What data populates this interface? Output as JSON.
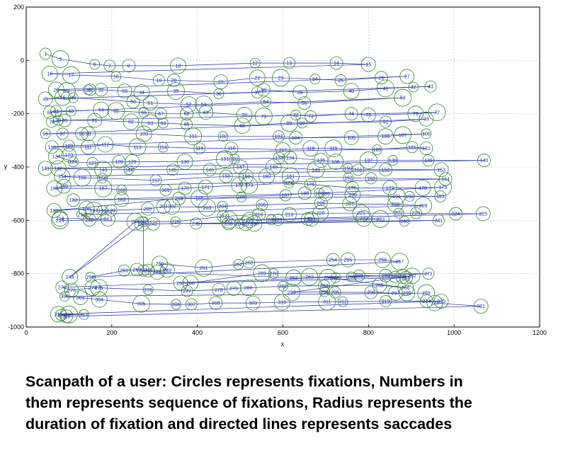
{
  "chart_data": {
    "type": "scatter",
    "xlabel": "x",
    "ylabel": "y",
    "xlim": [
      0,
      1200
    ],
    "ylim": [
      -1000,
      200
    ],
    "x_ticks": [
      0,
      200,
      400,
      600,
      800,
      1000,
      1200
    ],
    "y_ticks": [
      200,
      0,
      -200,
      -400,
      -600,
      -800,
      -1000
    ],
    "x_tick_labels": [
      "0",
      "200",
      "400",
      "600",
      "800",
      "1000",
      "1200"
    ],
    "y_tick_labels": [
      "200",
      "0",
      "-200",
      "-400",
      "-600",
      "-800",
      "-1000"
    ],
    "grid": "dotted",
    "fixations": [
      [
        1,
        45,
        25
      ],
      [
        5,
        80,
        5
      ],
      [
        6,
        160,
        -15
      ],
      [
        7,
        195,
        -20
      ],
      [
        8,
        240,
        -20
      ],
      [
        10,
        355,
        -20
      ],
      [
        12,
        535,
        -10
      ],
      [
        13,
        615,
        -10
      ],
      [
        14,
        725,
        -10
      ],
      [
        15,
        800,
        -15
      ],
      [
        16,
        55,
        -50
      ],
      [
        17,
        105,
        -55
      ],
      [
        18,
        210,
        -60
      ],
      [
        19,
        310,
        -75
      ],
      [
        20,
        345,
        -75
      ],
      [
        21,
        455,
        -80
      ],
      [
        22,
        540,
        -65
      ],
      [
        23,
        595,
        -65
      ],
      [
        24,
        675,
        -70
      ],
      [
        25,
        735,
        -75
      ],
      [
        26,
        830,
        -65
      ],
      [
        27,
        890,
        -60
      ],
      [
        28,
        70,
        -110
      ],
      [
        29,
        95,
        -115
      ],
      [
        30,
        145,
        -110
      ],
      [
        31,
        150,
        -110
      ],
      [
        32,
        175,
        -110
      ],
      [
        33,
        230,
        -115
      ],
      [
        34,
        270,
        -120
      ],
      [
        35,
        350,
        -115
      ],
      [
        36,
        450,
        -125
      ],
      [
        37,
        540,
        -120
      ],
      [
        38,
        555,
        -110
      ],
      [
        39,
        640,
        -120
      ],
      [
        40,
        760,
        -115
      ],
      [
        41,
        840,
        -105
      ],
      [
        42,
        905,
        -100
      ],
      [
        43,
        945,
        -98
      ],
      [
        45,
        45,
        -145
      ],
      [
        46,
        85,
        -140
      ],
      [
        48,
        110,
        -140
      ],
      [
        50,
        250,
        -155
      ],
      [
        51,
        290,
        -160
      ],
      [
        52,
        380,
        -165
      ],
      [
        53,
        415,
        -165
      ],
      [
        54,
        560,
        -155
      ],
      [
        56,
        650,
        -160
      ],
      [
        59,
        880,
        -140
      ],
      [
        60,
        105,
        -190
      ],
      [
        61,
        70,
        -190
      ],
      [
        62,
        55,
        -195
      ],
      [
        64,
        175,
        -185
      ],
      [
        65,
        210,
        -190
      ],
      [
        66,
        275,
        -195
      ],
      [
        67,
        315,
        -200
      ],
      [
        68,
        375,
        -200
      ],
      [
        69,
        420,
        -195
      ],
      [
        70,
        510,
        -205
      ],
      [
        71,
        555,
        -210
      ],
      [
        72,
        630,
        -205
      ],
      [
        73,
        665,
        -210
      ],
      [
        74,
        760,
        -200
      ],
      [
        75,
        800,
        -205
      ],
      [
        76,
        910,
        -200
      ],
      [
        77,
        960,
        -195
      ],
      [
        78,
        75,
        -225
      ],
      [
        79,
        60,
        -230
      ],
      [
        80,
        90,
        -225
      ],
      [
        81,
        160,
        -225
      ],
      [
        82,
        245,
        -230
      ],
      [
        83,
        290,
        -235
      ],
      [
        84,
        320,
        -235
      ],
      [
        85,
        375,
        -240
      ],
      [
        88,
        505,
        -245
      ],
      [
        89,
        615,
        -235
      ],
      [
        90,
        645,
        -235
      ],
      [
        91,
        840,
        -230
      ],
      [
        93,
        935,
        -220
      ],
      [
        96,
        45,
        -275
      ],
      [
        97,
        85,
        -275
      ],
      [
        98,
        130,
        -275
      ],
      [
        99,
        145,
        -275
      ],
      [
        100,
        275,
        -275
      ],
      [
        101,
        390,
        -285
      ],
      [
        102,
        460,
        -285
      ],
      [
        103,
        590,
        -285
      ],
      [
        104,
        630,
        -290
      ],
      [
        105,
        760,
        -290
      ],
      [
        106,
        840,
        -285
      ],
      [
        107,
        880,
        -280
      ],
      [
        108,
        935,
        -275
      ],
      [
        109,
        100,
        -320
      ],
      [
        110,
        60,
        -325
      ],
      [
        111,
        145,
        -325
      ],
      [
        112,
        185,
        -315
      ],
      [
        113,
        260,
        -325
      ],
      [
        114,
        320,
        -325
      ],
      [
        115,
        405,
        -330
      ],
      [
        116,
        480,
        -330
      ],
      [
        117,
        600,
        -335
      ],
      [
        118,
        665,
        -330
      ],
      [
        119,
        718,
        -330
      ],
      [
        120,
        820,
        -335
      ],
      [
        121,
        902,
        -325
      ],
      [
        122,
        935,
        -330
      ],
      [
        123,
        100,
        -355
      ],
      [
        124,
        70,
        -360
      ],
      [
        126,
        110,
        -380
      ],
      [
        127,
        155,
        -385
      ],
      [
        128,
        217,
        -380
      ],
      [
        129,
        248,
        -380
      ],
      [
        130,
        371,
        -380
      ],
      [
        131,
        464,
        -370
      ],
      [
        132,
        487,
        -370
      ],
      [
        133,
        591,
        -366
      ],
      [
        134,
        617,
        -365
      ],
      [
        135,
        689,
        -375
      ],
      [
        136,
        723,
        -380
      ],
      [
        137,
        800,
        -375
      ],
      [
        138,
        857,
        -375
      ],
      [
        139,
        940,
        -375
      ],
      [
        140,
        1070,
        -375
      ],
      [
        141,
        45,
        -405
      ],
      [
        142,
        75,
        -405
      ],
      [
        143,
        180,
        -410
      ],
      [
        144,
        240,
        -410
      ],
      [
        145,
        342,
        -410
      ],
      [
        146,
        429,
        -410
      ],
      [
        147,
        501,
        -400
      ],
      [
        148,
        578,
        -400
      ],
      [
        149,
        677,
        -410
      ],
      [
        150,
        752,
        -405
      ],
      [
        151,
        776,
        -410
      ],
      [
        152,
        840,
        -410
      ],
      [
        153,
        970,
        -410
      ],
      [
        154,
        84,
        -435
      ],
      [
        155,
        131,
        -440
      ],
      [
        156,
        178,
        -442
      ],
      [
        157,
        303,
        -450
      ],
      [
        158,
        467,
        -435
      ],
      [
        159,
        514,
        -435
      ],
      [
        160,
        562,
        -435
      ],
      [
        161,
        618,
        -435
      ],
      [
        162,
        753,
        -440
      ],
      [
        163,
        806,
        -442
      ],
      [
        164,
        980,
        -445
      ],
      [
        165,
        88,
        -472
      ],
      [
        166,
        66,
        -480
      ],
      [
        167,
        180,
        -480
      ],
      [
        168,
        223,
        -486
      ],
      [
        169,
        326,
        -486
      ],
      [
        170,
        371,
        -480
      ],
      [
        171,
        419,
        -475
      ],
      [
        172,
        498,
        -468
      ],
      [
        173,
        521,
        -468
      ],
      [
        174,
        614,
        -460
      ],
      [
        175,
        664,
        -465
      ],
      [
        176,
        762,
        -478
      ],
      [
        177,
        850,
        -478
      ],
      [
        178,
        927,
        -478
      ],
      [
        179,
        974,
        -476
      ],
      [
        180,
        685,
        -498
      ],
      [
        182,
        110,
        -524
      ],
      [
        183,
        223,
        -522
      ],
      [
        185,
        405,
        -518
      ],
      [
        186,
        503,
        -512
      ],
      [
        187,
        606,
        -506
      ],
      [
        188,
        651,
        -498
      ],
      [
        189,
        700,
        -500
      ],
      [
        190,
        763,
        -504
      ],
      [
        191,
        866,
        -510
      ],
      [
        192,
        896,
        -510
      ],
      [
        193,
        968,
        -510
      ],
      [
        194,
        357,
        -518
      ],
      [
        195,
        65,
        -563
      ],
      [
        196,
        141,
        -557
      ],
      [
        197,
        158,
        -563
      ],
      [
        198,
        178,
        -563
      ],
      [
        199,
        199,
        -563
      ],
      [
        200,
        284,
        -557
      ],
      [
        201,
        321,
        -548
      ],
      [
        202,
        341,
        -548
      ],
      [
        203,
        423,
        -552
      ],
      [
        204,
        459,
        -547
      ],
      [
        205,
        551,
        -542
      ],
      [
        206,
        689,
        -535
      ],
      [
        207,
        756,
        -538
      ],
      [
        208,
        863,
        -540
      ],
      [
        209,
        928,
        -545
      ],
      [
        210,
        130,
        -578
      ],
      [
        212,
        148,
        -598
      ],
      [
        213,
        191,
        -595
      ],
      [
        214,
        79,
        -593
      ],
      [
        215,
        79,
        -600
      ],
      [
        216,
        349,
        -605
      ],
      [
        217,
        460,
        -585
      ],
      [
        218,
        544,
        -578
      ],
      [
        219,
        615,
        -578
      ],
      [
        220,
        688,
        -573
      ],
      [
        221,
        783,
        -573
      ],
      [
        222,
        871,
        -573
      ],
      [
        223,
        911,
        -573
      ],
      [
        224,
        1004,
        -575
      ],
      [
        225,
        1068,
        -575
      ],
      [
        226,
        523,
        -598
      ],
      [
        227,
        474,
        -598
      ],
      [
        228,
        573,
        -598
      ],
      [
        229,
        589,
        -598
      ],
      [
        230,
        658,
        -595
      ],
      [
        231,
        667,
        -595
      ],
      [
        232,
        789,
        -593
      ],
      [
        233,
        828,
        -595
      ],
      [
        234,
        499,
        -612
      ],
      [
        235,
        397,
        -612
      ],
      [
        236,
        473,
        -612
      ],
      [
        237,
        513,
        -612
      ],
      [
        238,
        533,
        -612
      ],
      [
        240,
        884,
        -603
      ],
      [
        241,
        964,
        -600
      ],
      [
        242,
        297,
        -613
      ],
      [
        243,
        270,
        -613
      ],
      [
        244,
        102,
        -813
      ],
      [
        245,
        255,
        -605
      ],
      [
        246,
        274,
        -605
      ],
      [
        247,
        274,
        -788
      ],
      [
        248,
        285,
        -788
      ],
      [
        249,
        330,
        -787
      ],
      [
        250,
        312,
        -763
      ],
      [
        251,
        415,
        -778
      ],
      [
        252,
        496,
        -765
      ],
      [
        253,
        521,
        -758
      ],
      [
        254,
        717,
        -748
      ],
      [
        255,
        752,
        -748
      ],
      [
        256,
        833,
        -748
      ],
      [
        257,
        873,
        -755
      ],
      [
        258,
        150,
        -813
      ],
      [
        259,
        229,
        -788
      ],
      [
        260,
        259,
        -785
      ],
      [
        261,
        306,
        -795
      ],
      [
        262,
        625,
        -815
      ],
      [
        263,
        662,
        -812
      ],
      [
        264,
        760,
        -812
      ],
      [
        265,
        862,
        -812
      ],
      [
        266,
        888,
        -815
      ],
      [
        267,
        361,
        -835
      ],
      [
        268,
        384,
        -835
      ],
      [
        269,
        551,
        -798
      ],
      [
        270,
        578,
        -800
      ],
      [
        271,
        940,
        -800
      ],
      [
        272,
        84,
        -851
      ],
      [
        273,
        106,
        -862
      ],
      [
        274,
        155,
        -853
      ],
      [
        275,
        170,
        -853
      ],
      [
        276,
        285,
        -860
      ],
      [
        277,
        376,
        -865
      ],
      [
        278,
        450,
        -860
      ],
      [
        279,
        485,
        -855
      ],
      [
        280,
        519,
        -853
      ],
      [
        282,
        600,
        -847
      ],
      [
        283,
        696,
        -845
      ],
      [
        285,
        826,
        -843
      ],
      [
        286,
        887,
        -853
      ],
      [
        287,
        705,
        -815
      ],
      [
        288,
        723,
        -815
      ],
      [
        289,
        778,
        -807
      ],
      [
        290,
        840,
        -807
      ],
      [
        291,
        880,
        -810
      ],
      [
        292,
        902,
        -808
      ],
      [
        293,
        620,
        -870
      ],
      [
        294,
        697,
        -868
      ],
      [
        295,
        722,
        -870
      ],
      [
        296,
        806,
        -870
      ],
      [
        297,
        863,
        -873
      ],
      [
        298,
        890,
        -873
      ],
      [
        299,
        935,
        -873
      ],
      [
        300,
        90,
        -885
      ],
      [
        303,
        127,
        -890
      ],
      [
        304,
        171,
        -897
      ],
      [
        305,
        269,
        -913
      ],
      [
        306,
        350,
        -915
      ],
      [
        307,
        386,
        -915
      ],
      [
        308,
        443,
        -910
      ],
      [
        309,
        530,
        -910
      ],
      [
        310,
        598,
        -907
      ],
      [
        311,
        703,
        -905
      ],
      [
        312,
        740,
        -905
      ],
      [
        313,
        840,
        -903
      ],
      [
        314,
        936,
        -903
      ],
      [
        315,
        970,
        -903
      ],
      [
        316,
        75,
        -952
      ],
      [
        317,
        100,
        -953
      ],
      [
        318,
        135,
        -953
      ],
      [
        319,
        82,
        -955
      ],
      [
        320,
        94,
        -960
      ],
      [
        321,
        1063,
        -922
      ],
      [
        322,
        955,
        -910
      ]
    ]
  },
  "caption": {
    "line1": "Scanpath of a user: Circles represents fixations, Numbers in",
    "line2": "them represents sequence of fixations, Radius represents the",
    "line3": "duration of fixation and directed lines represents saccades"
  }
}
